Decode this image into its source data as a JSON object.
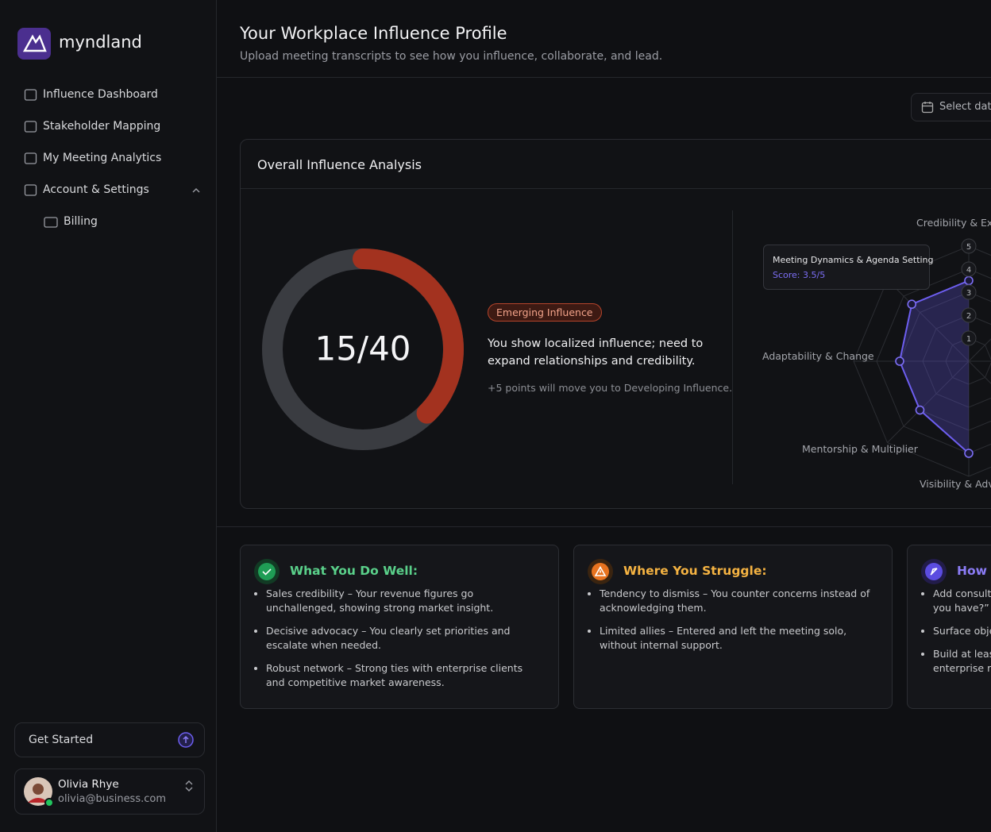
{
  "sidebar": {
    "brand": "myndland",
    "nav": [
      "Influence Dashboard",
      "Stakeholder Mapping",
      "My Meeting Analytics",
      "Account & Settings"
    ],
    "subnav": [
      "Billing"
    ],
    "cta": "Get Started",
    "user": {
      "name": "Olivia Rhye",
      "email": "olivia@business.com"
    }
  },
  "header": {
    "title": "Your Workplace Influence Profile",
    "subtitle": "Upload meeting transcripts to see how you influence, collaborate, and lead."
  },
  "toolbar": {
    "date_picker": "Select date"
  },
  "analysis": {
    "title": "Overall Influence Analysis",
    "gauge": {
      "value": 15,
      "max": 40,
      "label": "15/40"
    },
    "badge": "Emerging Influence",
    "summary": "You show localized influence; need to expand relationships and credibility.",
    "note": "+5 points will move you to Developing Influence.",
    "radar": {
      "rlim": [
        0,
        5
      ],
      "ticks": [
        1,
        2,
        3,
        4,
        5
      ],
      "axes": [
        {
          "label": "Credibility & Exp",
          "value": 3.5
        },
        {
          "label": null,
          "value": null
        },
        {
          "label": null,
          "value": null
        },
        {
          "label": null,
          "value": null
        },
        {
          "label": "Visibility & Adv",
          "value": 4
        },
        {
          "label": "Mentorship & Multiplier",
          "value": 3
        },
        {
          "label": "Adaptability & Change",
          "value": 3
        },
        {
          "label": null,
          "value": 3.5
        }
      ]
    },
    "tooltip": {
      "title": "Meeting Dynamics & Agenda Setting",
      "score": "Score: 3.5/5"
    }
  },
  "cards": [
    {
      "title": "What You Do Well:",
      "items": [
        "Sales credibility – Your revenue figures go unchallenged, showing strong market insight.",
        "Decisive advocacy – You clearly set priorities and escalate when needed.",
        "Robust network – Strong ties with enterprise clients and competitive market awareness."
      ]
    },
    {
      "title": "Where You Struggle:",
      "items": [
        "Tendency to dismiss – You counter concerns instead of acknowledging them.",
        "Limited allies – Entered and left the meeting solo, without internal support."
      ]
    },
    {
      "title": "How t",
      "items": [
        "Add consulta\nyou have?” a",
        "Surface obje",
        "Build at leas\nenterprise re"
      ]
    }
  ]
}
